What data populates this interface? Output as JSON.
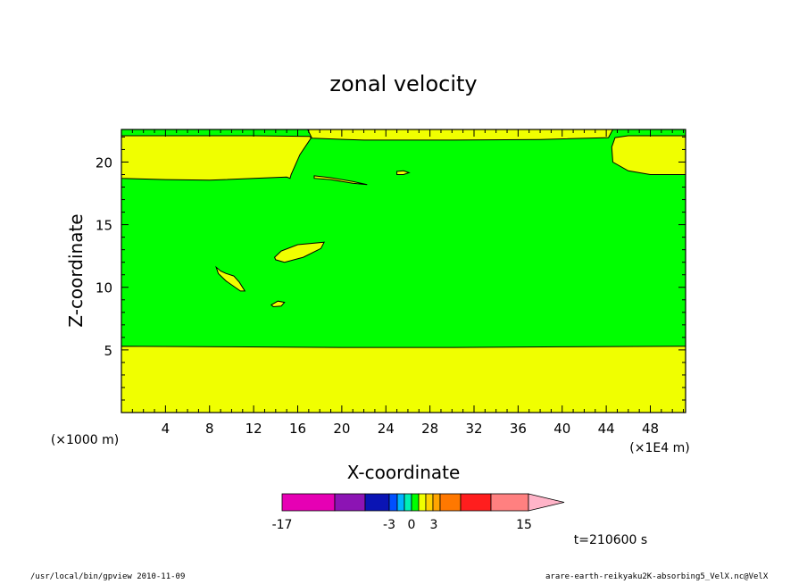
{
  "chart_data": {
    "type": "heatmap",
    "title": "zonal velocity",
    "xlabel": "X-coordinate",
    "ylabel": "Z-coordinate",
    "x_units": "(×1E4 m)",
    "y_units": "(×1000 m)",
    "xlim": [
      0,
      51.2
    ],
    "ylim": [
      0,
      22.6
    ],
    "x_ticks": [
      4,
      8,
      12,
      16,
      20,
      24,
      28,
      32,
      36,
      40,
      44,
      48
    ],
    "y_ticks": [
      5,
      10,
      15,
      20
    ],
    "colorbar": {
      "colors": [
        "#e600b4",
        "#8c14b4",
        "#0a14b4",
        "#0050ff",
        "#00b4ff",
        "#00f0b4",
        "#00ff00",
        "#f0ff00",
        "#ffd200",
        "#ffa500",
        "#ff7800",
        "#ff1e1e",
        "#ff8080",
        "#ffb4c8"
      ],
      "tick_labels": [
        "-17",
        "-3",
        "0",
        "3",
        "15"
      ]
    },
    "regions": [
      {
        "level": "0 to 1.5",
        "color": "#f0ff00",
        "description": "lower layer z < 5.3"
      },
      {
        "level": "-1.5 to 0",
        "color": "#00ff00",
        "description": "middle layer z 5.3 to 18.7"
      },
      {
        "level": "0 to 1.5",
        "color": "#f0ff00",
        "description": "upper layer z 18.7 to 22"
      }
    ],
    "grid": false
  },
  "annotations": {
    "time": "t=210600 s",
    "program": "/usr/local/bin/gpview   2010-11-09",
    "source": "arare-earth-reikyaku2K-absorbing5_VelX.nc@VelX"
  },
  "colors": {
    "yellow": "#f0ff00",
    "green": "#00ff00"
  }
}
